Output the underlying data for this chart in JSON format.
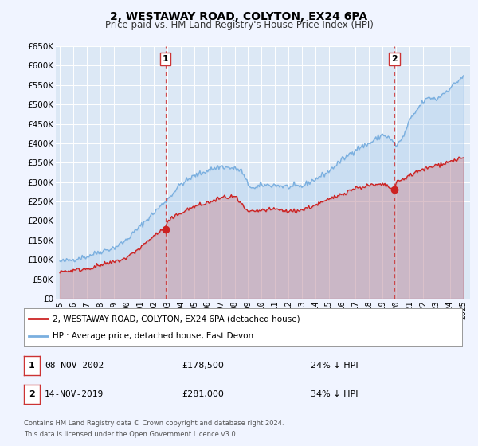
{
  "title": "2, WESTAWAY ROAD, COLYTON, EX24 6PA",
  "subtitle": "Price paid vs. HM Land Registry's House Price Index (HPI)",
  "background_color": "#f0f4ff",
  "plot_bg_color": "#dce8f5",
  "grid_color": "#ffffff",
  "ylim": [
    0,
    650000
  ],
  "yticks": [
    0,
    50000,
    100000,
    150000,
    200000,
    250000,
    300000,
    350000,
    400000,
    450000,
    500000,
    550000,
    600000,
    650000
  ],
  "ytick_labels": [
    "£0",
    "£50K",
    "£100K",
    "£150K",
    "£200K",
    "£250K",
    "£300K",
    "£350K",
    "£400K",
    "£450K",
    "£500K",
    "£550K",
    "£600K",
    "£650K"
  ],
  "sale1_date": 2002.86,
  "sale1_price": 178500,
  "sale1_label": "1",
  "sale1_date_str": "08-NOV-2002",
  "sale1_price_str": "£178,500",
  "sale1_hpi_str": "24% ↓ HPI",
  "sale2_date": 2019.87,
  "sale2_price": 281000,
  "sale2_label": "2",
  "sale2_date_str": "14-NOV-2019",
  "sale2_price_str": "£281,000",
  "sale2_hpi_str": "34% ↓ HPI",
  "hpi_color": "#7aafdf",
  "hpi_fill_color": "#aaccee",
  "price_color": "#cc2222",
  "price_fill_color": "#cc4444",
  "vline_color": "#cc3333",
  "marker_color": "#cc2222",
  "legend_label_price": "2, WESTAWAY ROAD, COLYTON, EX24 6PA (detached house)",
  "legend_label_hpi": "HPI: Average price, detached house, East Devon",
  "footer1": "Contains HM Land Registry data © Crown copyright and database right 2024.",
  "footer2": "This data is licensed under the Open Government Licence v3.0.",
  "xlim_left": 1994.7,
  "xlim_right": 2025.5
}
